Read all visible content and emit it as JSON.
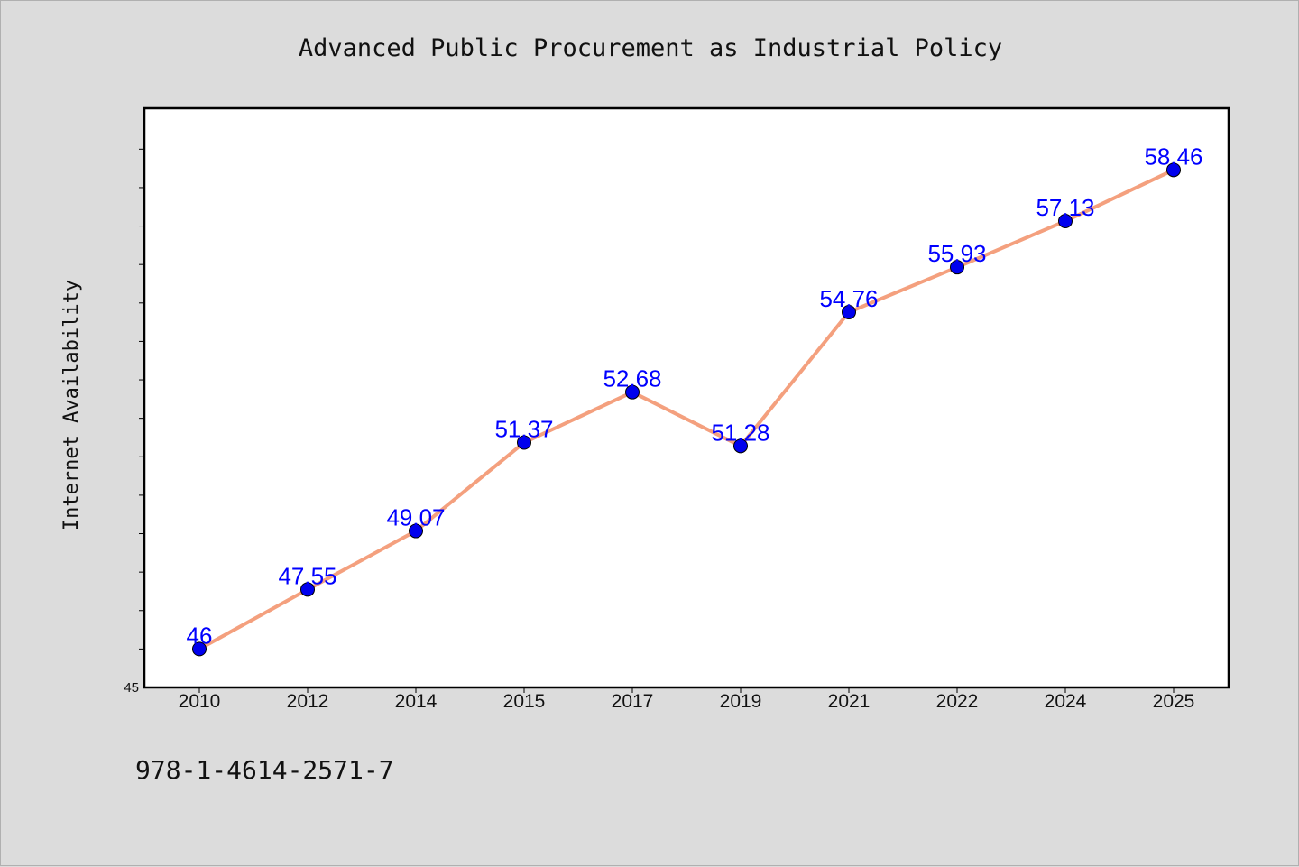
{
  "chart_data": {
    "type": "line",
    "title": "Advanced Public Procurement as Industrial Policy",
    "xlabel": "",
    "ylabel": "Internet Availability",
    "categories": [
      "2010",
      "2012",
      "2014",
      "2015",
      "2017",
      "2019",
      "2021",
      "2022",
      "2024",
      "2025"
    ],
    "series": [
      {
        "values": [
          46,
          47.55,
          49.07,
          51.37,
          52.68,
          51.28,
          54.76,
          55.93,
          57.13,
          58.46
        ],
        "data_labels": [
          "46",
          "47.55",
          "49.07",
          "51.37",
          "52.68",
          "51.28",
          "54.76",
          "55.93",
          "57.13",
          "58.46"
        ]
      }
    ],
    "ylim": [
      45,
      60
    ],
    "y_min_label": "45",
    "grid": false,
    "legend": "none",
    "colors": {
      "line": "#f4a07e",
      "marker": "#0000ee",
      "label": "#0000ff",
      "background": "#dcdcdc",
      "plot_background": "#ffffff"
    }
  },
  "footer": {
    "isbn": "978-1-4614-2571-7"
  }
}
